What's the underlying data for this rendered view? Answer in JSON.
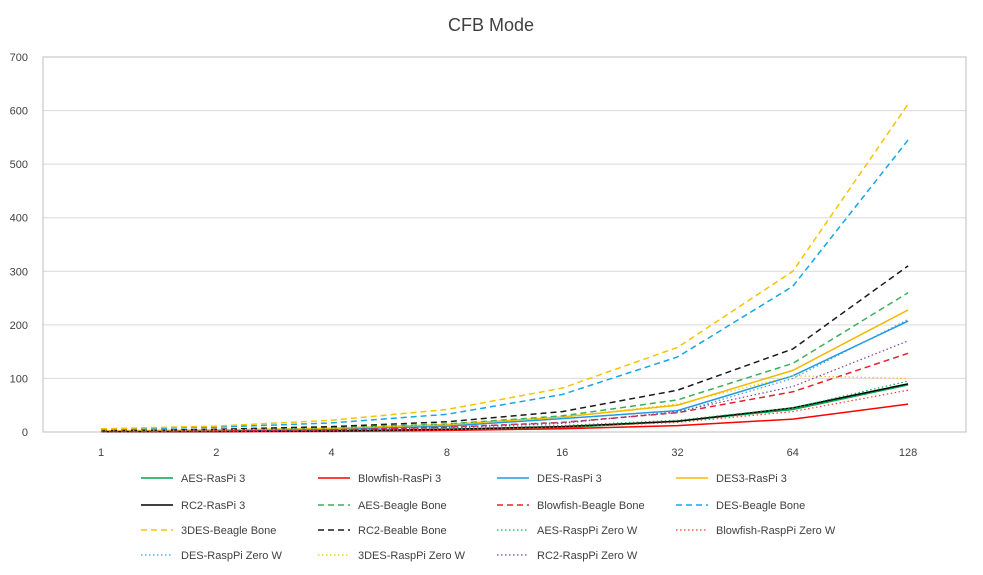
{
  "chart_data": {
    "type": "line",
    "title": "CFB Mode",
    "xlabel": "",
    "ylabel": "",
    "x": [
      "1",
      "2",
      "4",
      "8",
      "16",
      "32",
      "64",
      "128"
    ],
    "ylim": [
      0,
      700
    ],
    "yticks": [
      0,
      100,
      200,
      300,
      400,
      500,
      600,
      700
    ],
    "grid": "horizontal",
    "legend": "bottom",
    "series": [
      {
        "name": "AES-RasPi 3",
        "color": "#00a651",
        "style": "solid",
        "values": [
          0.5,
          1,
          2,
          4,
          8,
          20,
          42,
          88
        ]
      },
      {
        "name": "Blowfish-RasPi 3",
        "color": "#ff0000",
        "style": "solid",
        "values": [
          0.3,
          0.6,
          1.2,
          3,
          6,
          12,
          24,
          52
        ]
      },
      {
        "name": "DES-RasPi 3",
        "color": "#1f9bde",
        "style": "solid",
        "values": [
          1,
          2,
          5,
          11,
          25,
          40,
          105,
          207
        ]
      },
      {
        "name": "DES3-RasPi 3",
        "color": "#f5b800",
        "style": "solid",
        "values": [
          2,
          4,
          7,
          14,
          28,
          50,
          115,
          228
        ]
      },
      {
        "name": "RC2-RasPi 3",
        "color": "#000000",
        "style": "solid",
        "values": [
          0.5,
          1,
          2,
          5,
          10,
          20,
          45,
          90
        ]
      },
      {
        "name": "AES-Beagle Bone",
        "color": "#3dae5a",
        "style": "dashed",
        "values": [
          2,
          4,
          8,
          15,
          30,
          60,
          128,
          260
        ]
      },
      {
        "name": "Blowfish-Beagle Bone",
        "color": "#e8202a",
        "style": "dashed",
        "values": [
          1,
          2,
          4,
          9,
          18,
          36,
          75,
          147
        ]
      },
      {
        "name": "DES-Beagle Bone",
        "color": "#12a7e6",
        "style": "dashed",
        "values": [
          5,
          9,
          17,
          33,
          70,
          140,
          272,
          545
        ]
      },
      {
        "name": "3DES-Beagle Bone",
        "color": "#f5c400",
        "style": "dashed",
        "values": [
          6,
          11,
          22,
          42,
          82,
          158,
          300,
          612
        ]
      },
      {
        "name": "RC2-Beable Bone",
        "color": "#1a1a1a",
        "style": "dashed",
        "values": [
          2,
          5,
          10,
          19,
          38,
          78,
          155,
          310
        ]
      },
      {
        "name": "AES-RaspPi Zero W",
        "color": "#00b050",
        "style": "dotted",
        "values": [
          1,
          2,
          3,
          6,
          12,
          22,
          45,
          95
        ]
      },
      {
        "name": "Blowfish-RaspPi Zero W",
        "color": "#ff3b30",
        "style": "dotted",
        "values": [
          0.5,
          1,
          2,
          4,
          9,
          18,
          38,
          78
        ]
      },
      {
        "name": "DES-RaspPi Zero W",
        "color": "#3d9be9",
        "style": "dotted",
        "values": [
          1,
          2,
          4,
          9,
          18,
          36,
          100,
          210
        ]
      },
      {
        "name": "3DES-RaspPi Zero W",
        "color": "#f5c400",
        "style": "dotted",
        "values": [
          2,
          4,
          7,
          14,
          28,
          52,
          105,
          100
        ]
      },
      {
        "name": "RC2-RaspPi Zero W",
        "color": "#7f3f98",
        "style": "dotted",
        "values": [
          1,
          2,
          4,
          8,
          16,
          38,
          85,
          170
        ]
      }
    ]
  }
}
